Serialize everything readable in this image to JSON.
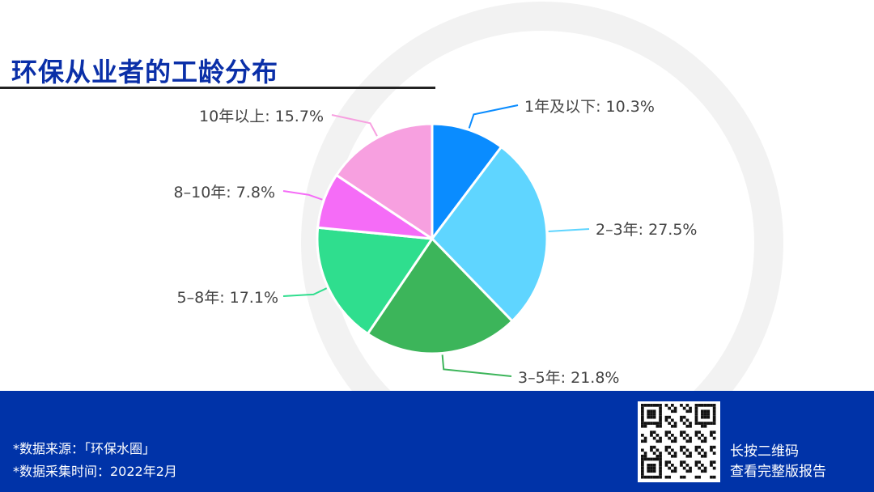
{
  "title": "环保从业者的工龄分布",
  "chart_data": {
    "type": "pie",
    "title": "环保从业者的工龄分布",
    "start": "top",
    "direction": "clockwise",
    "categories": [
      "1年及以下",
      "2–3年",
      "3–5年",
      "5–8年",
      "8–10年",
      "10年以上"
    ],
    "values": [
      10.3,
      27.5,
      21.8,
      17.1,
      7.8,
      15.7
    ],
    "labels": [
      "1年及以下: 10.3%",
      "2–3年: 27.5%",
      "3–5年: 21.8%",
      "5–8年: 17.1%",
      "8–10年: 7.8%",
      "10年以上: 15.7%"
    ],
    "colors": [
      "#0a8cff",
      "#5fd5ff",
      "#3cb55a",
      "#2fde8e",
      "#f56cf7",
      "#f7a0e0"
    ]
  },
  "footer": {
    "source": "*数据来源：「环保水圈」",
    "time": "*数据采集时间：2022年2月",
    "qr_line1": "长按二维码",
    "qr_line2": "查看完整版报告"
  },
  "band_color": "#0033a8"
}
